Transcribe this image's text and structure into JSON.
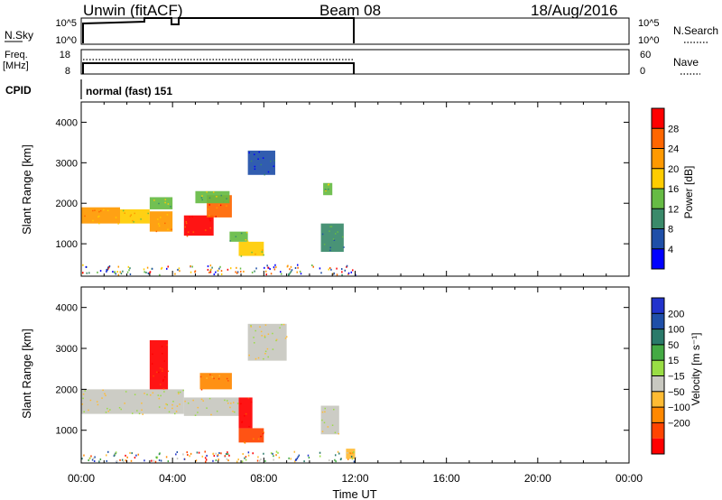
{
  "header": {
    "site": "Unwin (fitACF)",
    "beam": "Beam 08",
    "date": "18/Aug/2016"
  },
  "panels": {
    "nsky": {
      "left_label": "N.Sky",
      "left_ticks": [
        "10^5",
        "10^0"
      ],
      "right_ticks": [
        "10^5",
        "10^0"
      ],
      "right_label": "N.Search"
    },
    "freq": {
      "left_label_1": "Freq.",
      "left_label_2": "[MHz]",
      "left_ticks": [
        "18",
        "8"
      ],
      "right_ticks": [
        "60",
        "0"
      ],
      "right_label": "Nave"
    },
    "cpid": {
      "label": "CPID",
      "value": "normal (fast) 151"
    }
  },
  "colors": {
    "power": [
      "#0000ff",
      "#1f4fa8",
      "#3a8a6a",
      "#66bb44",
      "#ffcc00",
      "#ff9900",
      "#ff6600",
      "#ff0000"
    ],
    "velocity": [
      "#ff0000",
      "#ff4400",
      "#ff8800",
      "#ffbb33",
      "#c8c8c0",
      "#99dd44",
      "#44aa44",
      "#2a7a6a",
      "#1f4fa8",
      "#2233cc"
    ]
  },
  "chart_data": [
    {
      "type": "heatmap",
      "name": "power",
      "ylabel": "Slant Range [km]",
      "ylim": [
        200,
        4500
      ],
      "yticks": [
        1000,
        2000,
        3000,
        4000
      ],
      "xlim_hours": [
        0,
        24
      ],
      "colorbar": {
        "label": "Power [dB]",
        "ticks": [
          "4",
          "8",
          "12",
          "16",
          "20",
          "24",
          "28"
        ]
      }
    },
    {
      "type": "heatmap",
      "name": "velocity",
      "ylabel": "Slant Range [km]",
      "ylim": [
        200,
        4500
      ],
      "yticks": [
        1000,
        2000,
        3000,
        4000
      ],
      "xlim_hours": [
        0,
        24
      ],
      "xlabel": "Time UT",
      "xticks": [
        "00:00",
        "04:00",
        "08:00",
        "12:00",
        "16:00",
        "20:00",
        "00:00"
      ],
      "colorbar": {
        "label": "Velocity [m s⁻¹]",
        "ticks": [
          "200",
          "100",
          "50",
          "15",
          "−15",
          "−50",
          "−100",
          "−200"
        ]
      }
    }
  ],
  "regions_power": [
    {
      "t": [
        0.0,
        1.7
      ],
      "r": [
        1500,
        1900
      ],
      "c": 5
    },
    {
      "t": [
        1.7,
        3.0
      ],
      "r": [
        1500,
        1850
      ],
      "c": 4
    },
    {
      "t": [
        3.0,
        4.0
      ],
      "r": [
        1300,
        1800
      ],
      "c": 5
    },
    {
      "t": [
        4.5,
        5.8
      ],
      "r": [
        1200,
        1700
      ],
      "c": 7
    },
    {
      "t": [
        5.5,
        6.6
      ],
      "r": [
        1650,
        2200
      ],
      "c": 6
    },
    {
      "t": [
        6.9,
        8.0
      ],
      "r": [
        700,
        1050
      ],
      "c": 4
    },
    {
      "t": [
        3.0,
        4.0
      ],
      "r": [
        1850,
        2150
      ],
      "c": 3
    },
    {
      "t": [
        5.0,
        6.5
      ],
      "r": [
        2000,
        2300
      ],
      "c": 3
    },
    {
      "t": [
        7.3,
        8.5
      ],
      "r": [
        2700,
        3300
      ],
      "c": 1
    },
    {
      "t": [
        10.5,
        11.5
      ],
      "r": [
        800,
        1500
      ],
      "c": 2
    },
    {
      "t": [
        10.6,
        11.0
      ],
      "r": [
        2200,
        2500
      ],
      "c": 3
    },
    {
      "t": [
        6.5,
        7.3
      ],
      "r": [
        1050,
        1300
      ],
      "c": 3
    }
  ],
  "regions_velocity": [
    {
      "t": [
        0.0,
        4.5
      ],
      "r": [
        1400,
        2000
      ],
      "c": 4
    },
    {
      "t": [
        4.5,
        6.9
      ],
      "r": [
        1350,
        1800
      ],
      "c": 4
    },
    {
      "t": [
        6.9,
        8.0
      ],
      "r": [
        700,
        1050
      ],
      "c": 1
    },
    {
      "t": [
        6.9,
        7.5
      ],
      "r": [
        1050,
        1800
      ],
      "c": 0
    },
    {
      "t": [
        3.0,
        3.8
      ],
      "r": [
        2000,
        3200
      ],
      "c": 0
    },
    {
      "t": [
        5.2,
        6.6
      ],
      "r": [
        2000,
        2400
      ],
      "c": 2
    },
    {
      "t": [
        10.5,
        11.3
      ],
      "r": [
        900,
        1600
      ],
      "c": 4
    },
    {
      "t": [
        7.3,
        9.0
      ],
      "r": [
        2700,
        3600
      ],
      "c": 4
    },
    {
      "t": [
        11.6,
        12.0
      ],
      "r": [
        300,
        550
      ],
      "c": 3
    }
  ]
}
